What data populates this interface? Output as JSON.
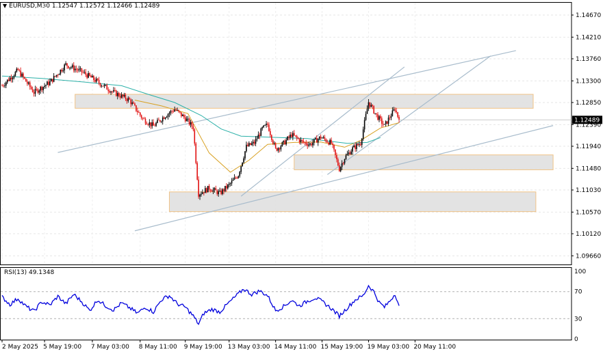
{
  "header": {
    "symbol": "EURUSD,M30",
    "open": "1.12547",
    "high": "1.12572",
    "low": "1.12466",
    "close": "1.12489"
  },
  "rsi_header": {
    "name": "RSI(13)",
    "value": "49.1348"
  },
  "colors": {
    "bull_candle": "#000000",
    "bear_candle": "#e01010",
    "ma_fast": "#d8a020",
    "ma_slow": "#2ab0a8",
    "trendline": "#a8bccc",
    "zone_fill": "#e2e2e2",
    "zone_border": "#f0c080",
    "rsi_line": "#0000dd",
    "price_tag_bg": "#000000"
  },
  "chart_data": [
    {
      "type": "candlestick",
      "symbol": "EURUSD",
      "timeframe": "M30",
      "current_price": 1.12489,
      "current_price_label": "1.12489",
      "ylim": [
        1.0948,
        1.1494
      ],
      "y_ticks": [
        "1.14670",
        "1.14210",
        "1.13760",
        "1.13300",
        "1.12850",
        "1.12390",
        "1.11940",
        "1.11480",
        "1.11030",
        "1.10570",
        "1.10120",
        "1.09660"
      ],
      "x_ticks": [
        "2 May 2025",
        "5 May 19:00",
        "7 May 03:00",
        "8 May 11:00",
        "9 May 19:00",
        "13 May 03:00",
        "14 May 11:00",
        "15 May 19:00",
        "19 May 03:00",
        "20 May 11:00"
      ],
      "price_path": [
        {
          "bar": 0,
          "price": 1.132
        },
        {
          "bar": 12,
          "price": 1.1352
        },
        {
          "bar": 24,
          "price": 1.1306
        },
        {
          "bar": 36,
          "price": 1.1327
        },
        {
          "bar": 48,
          "price": 1.1364
        },
        {
          "bar": 60,
          "price": 1.1349
        },
        {
          "bar": 72,
          "price": 1.1328
        },
        {
          "bar": 84,
          "price": 1.1306
        },
        {
          "bar": 96,
          "price": 1.129
        },
        {
          "bar": 106,
          "price": 1.1251
        },
        {
          "bar": 114,
          "price": 1.1236
        },
        {
          "bar": 122,
          "price": 1.1256
        },
        {
          "bar": 130,
          "price": 1.1271
        },
        {
          "bar": 138,
          "price": 1.1252
        },
        {
          "bar": 144,
          "price": 1.1233
        },
        {
          "bar": 148,
          "price": 1.1095
        },
        {
          "bar": 156,
          "price": 1.1107
        },
        {
          "bar": 164,
          "price": 1.1096
        },
        {
          "bar": 172,
          "price": 1.1116
        },
        {
          "bar": 178,
          "price": 1.1135
        },
        {
          "bar": 184,
          "price": 1.1193
        },
        {
          "bar": 190,
          "price": 1.1201
        },
        {
          "bar": 196,
          "price": 1.123
        },
        {
          "bar": 200,
          "price": 1.1239
        },
        {
          "bar": 206,
          "price": 1.1187
        },
        {
          "bar": 212,
          "price": 1.12
        },
        {
          "bar": 218,
          "price": 1.1218
        },
        {
          "bar": 226,
          "price": 1.1203
        },
        {
          "bar": 232,
          "price": 1.1198
        },
        {
          "bar": 240,
          "price": 1.1213
        },
        {
          "bar": 248,
          "price": 1.12
        },
        {
          "bar": 254,
          "price": 1.1147
        },
        {
          "bar": 258,
          "price": 1.117
        },
        {
          "bar": 264,
          "price": 1.1189
        },
        {
          "bar": 270,
          "price": 1.1201
        },
        {
          "bar": 276,
          "price": 1.1286
        },
        {
          "bar": 282,
          "price": 1.1258
        },
        {
          "bar": 288,
          "price": 1.1236
        },
        {
          "bar": 292,
          "price": 1.1255
        },
        {
          "bar": 296,
          "price": 1.1272
        },
        {
          "bar": 299,
          "price": 1.1249
        }
      ],
      "moving_averages": [
        {
          "name": "fast",
          "points": [
            {
              "bar": 100,
              "price": 1.129
            },
            {
              "bar": 120,
              "price": 1.1278
            },
            {
              "bar": 140,
              "price": 1.1262
            },
            {
              "bar": 156,
              "price": 1.118
            },
            {
              "bar": 172,
              "price": 1.114
            },
            {
              "bar": 186,
              "price": 1.1165
            },
            {
              "bar": 200,
              "price": 1.1198
            },
            {
              "bar": 220,
              "price": 1.1202
            },
            {
              "bar": 240,
              "price": 1.1203
            },
            {
              "bar": 258,
              "price": 1.1192
            },
            {
              "bar": 270,
              "price": 1.1206
            },
            {
              "bar": 285,
              "price": 1.1232
            },
            {
              "bar": 299,
              "price": 1.1243
            }
          ]
        },
        {
          "name": "slow",
          "points": [
            {
              "bar": 0,
              "price": 1.134
            },
            {
              "bar": 30,
              "price": 1.1335
            },
            {
              "bar": 60,
              "price": 1.1328
            },
            {
              "bar": 90,
              "price": 1.132
            },
            {
              "bar": 110,
              "price": 1.1302
            },
            {
              "bar": 130,
              "price": 1.1285
            },
            {
              "bar": 150,
              "price": 1.1258
            },
            {
              "bar": 165,
              "price": 1.123
            },
            {
              "bar": 180,
              "price": 1.1215
            },
            {
              "bar": 200,
              "price": 1.1213
            },
            {
              "bar": 230,
              "price": 1.121
            },
            {
              "bar": 260,
              "price": 1.12
            },
            {
              "bar": 275,
              "price": 1.1202
            },
            {
              "bar": 285,
              "price": 1.1212
            }
          ]
        }
      ],
      "zones": [
        {
          "from_bar": 55,
          "to_bar": 400,
          "top": 1.1302,
          "bottom": 1.1273
        },
        {
          "from_bar": 220,
          "to_bar": 415,
          "top": 1.1176,
          "bottom": 1.1145
        },
        {
          "from_bar": 126,
          "to_bar": 402,
          "top": 1.1099,
          "bottom": 1.1058
        }
      ],
      "trendlines": [
        {
          "from": {
            "bar": 42,
            "price": 1.1181
          },
          "to": {
            "bar": 387,
            "price": 1.1393
          }
        },
        {
          "from": {
            "bar": 100,
            "price": 1.1018
          },
          "to": {
            "bar": 415,
            "price": 1.1237
          }
        },
        {
          "from": {
            "bar": 180,
            "price": 1.109
          },
          "to": {
            "bar": 303,
            "price": 1.1359
          }
        },
        {
          "from": {
            "bar": 245,
            "price": 1.1135
          },
          "to": {
            "bar": 368,
            "price": 1.1382
          }
        }
      ]
    },
    {
      "type": "line",
      "indicator": "RSI(13)",
      "current_value": 49.1348,
      "ylim": [
        0,
        100
      ],
      "y_ticks": [
        "100",
        "70",
        "30",
        "0"
      ],
      "levels": [
        70,
        30
      ],
      "points": [
        {
          "bar": 0,
          "value": 62
        },
        {
          "bar": 6,
          "value": 51
        },
        {
          "bar": 12,
          "value": 60
        },
        {
          "bar": 18,
          "value": 48
        },
        {
          "bar": 24,
          "value": 41
        },
        {
          "bar": 30,
          "value": 55
        },
        {
          "bar": 36,
          "value": 50
        },
        {
          "bar": 42,
          "value": 63
        },
        {
          "bar": 48,
          "value": 52
        },
        {
          "bar": 54,
          "value": 66
        },
        {
          "bar": 60,
          "value": 55
        },
        {
          "bar": 66,
          "value": 42
        },
        {
          "bar": 72,
          "value": 58
        },
        {
          "bar": 78,
          "value": 49
        },
        {
          "bar": 84,
          "value": 43
        },
        {
          "bar": 90,
          "value": 53
        },
        {
          "bar": 96,
          "value": 46
        },
        {
          "bar": 102,
          "value": 38
        },
        {
          "bar": 108,
          "value": 47
        },
        {
          "bar": 114,
          "value": 40
        },
        {
          "bar": 120,
          "value": 58
        },
        {
          "bar": 126,
          "value": 64
        },
        {
          "bar": 132,
          "value": 52
        },
        {
          "bar": 138,
          "value": 47
        },
        {
          "bar": 144,
          "value": 34
        },
        {
          "bar": 148,
          "value": 22
        },
        {
          "bar": 152,
          "value": 38
        },
        {
          "bar": 158,
          "value": 44
        },
        {
          "bar": 164,
          "value": 40
        },
        {
          "bar": 170,
          "value": 52
        },
        {
          "bar": 176,
          "value": 63
        },
        {
          "bar": 182,
          "value": 74
        },
        {
          "bar": 188,
          "value": 66
        },
        {
          "bar": 194,
          "value": 71
        },
        {
          "bar": 200,
          "value": 64
        },
        {
          "bar": 206,
          "value": 42
        },
        {
          "bar": 212,
          "value": 48
        },
        {
          "bar": 218,
          "value": 57
        },
        {
          "bar": 224,
          "value": 49
        },
        {
          "bar": 230,
          "value": 56
        },
        {
          "bar": 236,
          "value": 61
        },
        {
          "bar": 242,
          "value": 54
        },
        {
          "bar": 248,
          "value": 45
        },
        {
          "bar": 254,
          "value": 34
        },
        {
          "bar": 260,
          "value": 46
        },
        {
          "bar": 266,
          "value": 58
        },
        {
          "bar": 272,
          "value": 64
        },
        {
          "bar": 276,
          "value": 79
        },
        {
          "bar": 280,
          "value": 70
        },
        {
          "bar": 284,
          "value": 54
        },
        {
          "bar": 288,
          "value": 47
        },
        {
          "bar": 292,
          "value": 56
        },
        {
          "bar": 296,
          "value": 67
        },
        {
          "bar": 299,
          "value": 49
        }
      ]
    }
  ]
}
